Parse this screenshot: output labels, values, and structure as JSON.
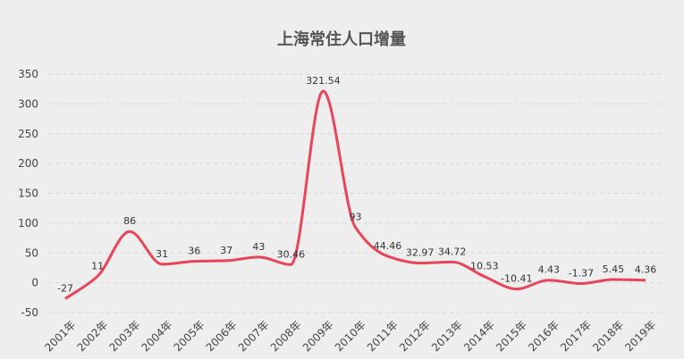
{
  "chart_data": {
    "type": "line",
    "title": "上海常住人口增量",
    "xlabel": "",
    "ylabel": "",
    "categories": [
      "2001年",
      "2002年",
      "2003年",
      "2004年",
      "2005年",
      "2006年",
      "2007年",
      "2008年",
      "2009年",
      "2010年",
      "2011年",
      "2012年",
      "2013年",
      "2014年",
      "2015年",
      "2016年",
      "2017年",
      "2018年",
      "2019年"
    ],
    "series": [
      {
        "values": [
          -27,
          11,
          86,
          31,
          36,
          37,
          43,
          30.46,
          321.54,
          93,
          44.46,
          32.97,
          34.72,
          10.53,
          -10.41,
          4.43,
          -1.37,
          5.45,
          4.36
        ],
        "data_labels": [
          "-27",
          "11",
          "86",
          "31",
          "36",
          "37",
          "43",
          "30.46",
          "321.54",
          "93",
          "44.46",
          "32.97",
          "34.72",
          "10.53",
          "-10.41",
          "4.43",
          "-1.37",
          "5.45",
          "4.36"
        ],
        "color": "#e8445a",
        "smooth": true
      }
    ],
    "yticks": [
      "-50",
      "0",
      "50",
      "100",
      "150",
      "200",
      "250",
      "300",
      "350"
    ],
    "ylim": [
      -50,
      350
    ],
    "grid": true,
    "legend": "none"
  }
}
